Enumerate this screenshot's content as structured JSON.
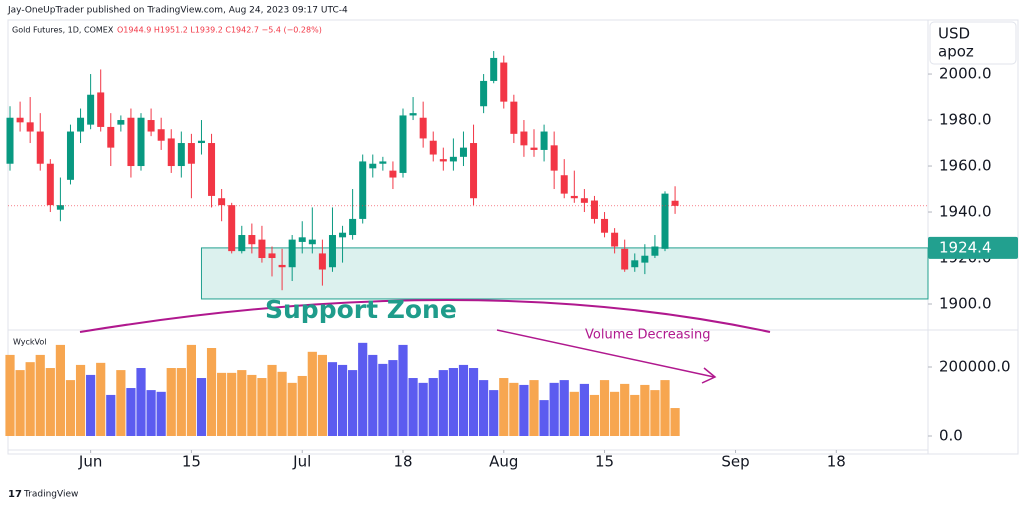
{
  "header": "Jay-OneUpTrader published on TradingView.com, Aug 24, 2023 09:17 UTC-4",
  "footer": "TradingView",
  "chart_data": [
    {
      "type": "candlestick",
      "title": "Gold Futures, 1D, COMEX",
      "legend_text": "O1944.9 H1951.2 L1939.2 C1942.7 −5.4 (−0.28%)",
      "currency": "USD",
      "unit": "apoz",
      "up_color": "#089981",
      "down_color": "#f23645",
      "open": [
        1961,
        1981,
        1979,
        1975,
        1961,
        1941,
        1954,
        1975,
        1978,
        1992,
        1977,
        1978,
        1981,
        1960,
        1980,
        1976,
        1972,
        1960,
        1970,
        1970,
        1970,
        1946,
        1943,
        1923,
        1930,
        1928,
        1922,
        1917,
        1916,
        1927,
        1926,
        1922,
        1916,
        1929,
        1930,
        1937,
        1959,
        1961,
        1958,
        1957,
        1982,
        1981,
        1971,
        1963,
        1962,
        1964,
        1970,
        1986,
        1997,
        2005,
        1988,
        1975,
        1968,
        1967,
        1969,
        1956,
        1947,
        1946,
        1945,
        1937,
        1931,
        1924,
        1916,
        1918,
        1921,
        1924,
        1944.9
      ],
      "high": [
        1986,
        1988,
        1990,
        1983,
        1963,
        1955,
        1978,
        1985,
        2000,
        2002,
        1983,
        1982,
        1985,
        1983,
        1985,
        1981,
        1976,
        1975,
        1974,
        1980,
        1974,
        1950,
        1944,
        1934,
        1935,
        1934,
        1925,
        1924,
        1930,
        1936,
        1942,
        1928,
        1942,
        1934,
        1950,
        1965,
        1965,
        1964,
        1962,
        1985,
        1990,
        1988,
        1975,
        1968,
        1972,
        1975,
        1978,
        2000,
        2010,
        2008,
        1991,
        1980,
        1976,
        1978,
        1975,
        1963,
        1958,
        1950,
        1947,
        1940,
        1933,
        1928,
        1922,
        1926,
        1930,
        1949,
        1951.2
      ],
      "low": [
        1958,
        1975,
        1970,
        1958,
        1940,
        1936,
        1952,
        1970,
        1976,
        1975,
        1960,
        1975,
        1955,
        1958,
        1973,
        1967,
        1957,
        1955,
        1946,
        1965,
        1942,
        1936,
        1922,
        1922,
        1922,
        1918,
        1912,
        1906,
        1910,
        1922,
        1922,
        1908,
        1914,
        1918,
        1928,
        1935,
        1955,
        1958,
        1950,
        1955,
        1980,
        1968,
        1962,
        1958,
        1958,
        1960,
        1943,
        1983,
        1996,
        1985,
        1970,
        1964,
        1964,
        1962,
        1950,
        1946,
        1944,
        1940,
        1935,
        1929,
        1922,
        1914,
        1914,
        1913,
        1920,
        1923,
        1939.2
      ],
      "close": [
        1981,
        1979,
        1975,
        1961,
        1943,
        1943,
        1975,
        1981,
        1991,
        1977,
        1968,
        1980,
        1960,
        1981,
        1975,
        1971,
        1960,
        1970,
        1961,
        1971,
        1947,
        1943,
        1923,
        1930,
        1926,
        1920,
        1920,
        1916,
        1928,
        1929,
        1928,
        1915,
        1930,
        1931,
        1937,
        1962,
        1961,
        1962,
        1955,
        1982,
        1983,
        1972,
        1965,
        1962,
        1964,
        1968,
        1946,
        1997,
        2007,
        1988,
        1974,
        1969,
        1967,
        1975,
        1958,
        1948,
        1946,
        1944,
        1937,
        1931,
        1925,
        1915,
        1919,
        1921,
        1925,
        1948,
        1942.7
      ],
      "xlim": [
        -0.2,
        91.1
      ],
      "xticks": [
        {
          "value": 8,
          "label": "Jun"
        },
        {
          "value": 18,
          "label": "15"
        },
        {
          "value": 29,
          "label": "Jul"
        },
        {
          "value": 39,
          "label": "18"
        },
        {
          "value": 49,
          "label": "Aug"
        },
        {
          "value": 59,
          "label": "15"
        },
        {
          "value": 72,
          "label": "Sep"
        },
        {
          "value": 82,
          "label": "18"
        }
      ],
      "ylim": [
        1888.7,
        2023.5
      ],
      "yticks": [
        {
          "value": 1900,
          "label": "1900.0"
        },
        {
          "value": 1920,
          "label": "1920.0"
        },
        {
          "value": 1940,
          "label": "1940.0"
        },
        {
          "value": 1960,
          "label": "1960.0"
        },
        {
          "value": 1980,
          "label": "1980.0"
        },
        {
          "value": 2000,
          "label": "2000.0"
        }
      ],
      "support_zone": {
        "label": "Support Zone",
        "top": 1924.4,
        "bottom": 1902.2,
        "start": 19
      }
    },
    {
      "type": "bar",
      "title": "WyckVol",
      "annotation": "Volume Decreasing",
      "values": [
        235000,
        191000,
        214000,
        235000,
        197000,
        264000,
        162000,
        206000,
        177000,
        212000,
        119000,
        191000,
        139000,
        197000,
        133000,
        128000,
        197000,
        197000,
        264000,
        168000,
        255000,
        183000,
        183000,
        191000,
        177000,
        168000,
        206000,
        186000,
        154000,
        174000,
        244000,
        235000,
        214000,
        206000,
        191000,
        270000,
        235000,
        209000,
        220000,
        264000,
        168000,
        154000,
        168000,
        191000,
        197000,
        206000,
        197000,
        162000,
        133000,
        168000,
        154000,
        148000,
        162000,
        104000,
        154000,
        162000,
        128000,
        151000,
        119000,
        162000,
        128000,
        151000,
        119000,
        148000,
        133000,
        162000,
        81000
      ],
      "colors": [
        "#f7a650",
        "#f7a650",
        "#f7a650",
        "#f7a650",
        "#f7a650",
        "#f7a650",
        "#f7a650",
        "#f7a650",
        "#5c5cf0",
        "#f7a650",
        "#5c5cf0",
        "#f7a650",
        "#5c5cf0",
        "#5c5cf0",
        "#5c5cf0",
        "#5c5cf0",
        "#f7a650",
        "#f7a650",
        "#f7a650",
        "#5c5cf0",
        "#f7a650",
        "#f7a650",
        "#f7a650",
        "#f7a650",
        "#f7a650",
        "#f7a650",
        "#f7a650",
        "#f7a650",
        "#f7a650",
        "#f7a650",
        "#f7a650",
        "#f7a650",
        "#5c5cf0",
        "#5c5cf0",
        "#5c5cf0",
        "#5c5cf0",
        "#5c5cf0",
        "#5c5cf0",
        "#5c5cf0",
        "#5c5cf0",
        "#5c5cf0",
        "#5c5cf0",
        "#5c5cf0",
        "#5c5cf0",
        "#5c5cf0",
        "#5c5cf0",
        "#5c5cf0",
        "#5c5cf0",
        "#5c5cf0",
        "#f7a650",
        "#f7a650",
        "#5c5cf0",
        "#f7a650",
        "#5c5cf0",
        "#5c5cf0",
        "#5c5cf0",
        "#f7a650",
        "#5c5cf0",
        "#f7a650",
        "#f7a650",
        "#f7a650",
        "#f7a650",
        "#f7a650",
        "#f7a650",
        "#f7a650",
        "#f7a650",
        "#f7a650"
      ],
      "ylim": [
        -40600,
        307200
      ],
      "yticks": [
        {
          "value": 0,
          "label": "0.0"
        },
        {
          "value": 200000,
          "label": "200000.0"
        }
      ]
    }
  ]
}
